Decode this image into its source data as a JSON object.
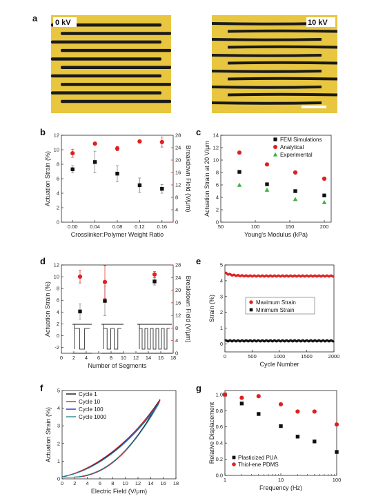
{
  "panel_labels": {
    "a": "a",
    "b": "b",
    "c": "c",
    "d": "d",
    "e": "e",
    "f": "f",
    "g": "g"
  },
  "photos": {
    "left_label": "0 kV",
    "right_label": "10 kV",
    "background": "#e8c640",
    "stripe_color": "#1a1a1a"
  },
  "chart_data": [
    {
      "id": "b",
      "type": "scatter",
      "xlabel": "Crosslinker:Polymer Weight Ratio",
      "ylabel": "Actuation Strain (%)",
      "y2label": "Breakdown Field (V/μm)",
      "xlim": [
        -0.02,
        0.18
      ],
      "ylim": [
        0,
        12
      ],
      "y2lim": [
        0,
        28
      ],
      "xticks": [
        0.0,
        0.04,
        0.08,
        0.12,
        0.16
      ],
      "xtick_labels": [
        "0.00",
        "0.04",
        "0.08",
        "0.12",
        "0.16"
      ],
      "yticks": [
        0,
        2,
        4,
        6,
        8,
        10,
        12
      ],
      "y2ticks": [
        0,
        4,
        8,
        12,
        16,
        20,
        24,
        28
      ],
      "series": [
        {
          "axis": "left",
          "marker": "square",
          "color": "#111111",
          "x": [
            0.0,
            0.04,
            0.08,
            0.12,
            0.16
          ],
          "y": [
            7.3,
            8.3,
            6.7,
            5.1,
            4.6
          ],
          "err": [
            0.5,
            1.5,
            1.1,
            1.0,
            0.6
          ]
        },
        {
          "axis": "right",
          "marker": "circle",
          "color": "#e02020",
          "x": [
            0.0,
            0.04,
            0.08,
            0.12,
            0.16
          ],
          "y": [
            22.2,
            25.3,
            23.7,
            26.0,
            25.8
          ],
          "err": [
            1.3,
            0,
            0.7,
            0,
            1.6
          ]
        }
      ]
    },
    {
      "id": "c",
      "type": "scatter",
      "xlabel": "Young's Modulus (kPa)",
      "ylabel": "Actuation Strain at 20 V/μm",
      "xlim": [
        50,
        210
      ],
      "ylim": [
        0,
        14
      ],
      "xticks": [
        50,
        100,
        150,
        200
      ],
      "yticks": [
        0,
        2,
        4,
        6,
        8,
        10,
        12,
        14
      ],
      "legend_position": "top-right",
      "series": [
        {
          "name": "FEM Simulations",
          "marker": "square",
          "color": "#111111",
          "x": [
            77,
            117,
            158,
            200
          ],
          "y": [
            8.1,
            6.1,
            5.0,
            4.3
          ]
        },
        {
          "name": "Analytical",
          "marker": "circle",
          "color": "#e02020",
          "x": [
            77,
            117,
            158,
            200
          ],
          "y": [
            11.2,
            9.3,
            8.0,
            7.0
          ]
        },
        {
          "name": "Experimental",
          "marker": "triangle",
          "color": "#3cb53c",
          "x": [
            77,
            117,
            158,
            200
          ],
          "y": [
            6.0,
            5.2,
            3.7,
            3.2
          ]
        }
      ]
    },
    {
      "id": "d",
      "type": "scatter",
      "xlabel": "Number of Segments",
      "ylabel": "Actuation Strain (%)",
      "y2label": "Breakdown Field (V/μm)",
      "xlim": [
        0,
        18
      ],
      "ylim": [
        -3,
        12
      ],
      "y2lim": [
        0,
        28
      ],
      "xticks": [
        0,
        2,
        4,
        6,
        8,
        10,
        12,
        14,
        16,
        18
      ],
      "yticks": [
        -2,
        0,
        2,
        4,
        6,
        8,
        10,
        12
      ],
      "y2ticks": [
        0,
        4,
        8,
        12,
        16,
        20,
        24,
        28
      ],
      "series": [
        {
          "axis": "left",
          "marker": "square",
          "color": "#111111",
          "x": [
            3,
            7,
            15
          ],
          "y": [
            4.1,
            5.9,
            9.2
          ],
          "err": [
            1.3,
            2.5,
            0.6
          ]
        },
        {
          "axis": "right",
          "marker": "circle",
          "color": "#e02020",
          "x": [
            3,
            7,
            15
          ],
          "y": [
            24.3,
            22.6,
            25.0
          ],
          "err": [
            2.0,
            5.2,
            0.9
          ]
        }
      ]
    },
    {
      "id": "e",
      "type": "scatter",
      "xlabel": "Cycle Number",
      "ylabel": "Strain (%)",
      "xlim": [
        0,
        2000
      ],
      "ylim": [
        -0.5,
        5
      ],
      "xticks": [
        0,
        500,
        1000,
        1500,
        2000
      ],
      "yticks": [
        0,
        1,
        2,
        3,
        4,
        5
      ],
      "legend_position": "center",
      "series": [
        {
          "name": "Maximum Strain",
          "marker": "circle",
          "color": "#e02020",
          "level": 4.3,
          "start": 4.5
        },
        {
          "name": "Minimum Strain",
          "marker": "square",
          "color": "#111111",
          "level": 0.2,
          "start": 0.2
        }
      ]
    },
    {
      "id": "f",
      "type": "line",
      "xlabel": "Electric Field (V/μm)",
      "ylabel": "Actuation Strain (%)",
      "xlim": [
        0,
        18
      ],
      "ylim": [
        0,
        5
      ],
      "xticks": [
        0,
        2,
        4,
        6,
        8,
        10,
        12,
        14,
        16,
        18
      ],
      "yticks": [
        0,
        1,
        2,
        3,
        4,
        5
      ],
      "legend_position": "top-left",
      "series": [
        {
          "name": "Cycle 1",
          "color": "#111111",
          "xmax": 15.5,
          "ymax": 4.5,
          "hyst": 0.32
        },
        {
          "name": "Cycle 10",
          "color": "#e02020",
          "xmax": 15.5,
          "ymax": 4.45,
          "hyst": 0.36
        },
        {
          "name": "Cycle 100",
          "color": "#2030c0",
          "xmax": 15.4,
          "ymax": 4.35,
          "hyst": 0.3
        },
        {
          "name": "Cycle 1000",
          "color": "#2a8a8a",
          "xmax": 15.3,
          "ymax": 4.25,
          "hyst": 0.28
        }
      ]
    },
    {
      "id": "g",
      "type": "scatter",
      "xscale": "log",
      "xlabel": "Frequency (Hz)",
      "ylabel": "Relative Displacement",
      "xlim": [
        1,
        100
      ],
      "ylim": [
        0,
        1.05
      ],
      "xticks": [
        1,
        10,
        100
      ],
      "xtick_labels": [
        "1",
        "10",
        "100"
      ],
      "yticks": [
        0,
        0.2,
        0.4,
        0.6,
        0.8,
        1.0
      ],
      "ytick_labels": [
        "0.0",
        "0.2",
        "0.4",
        "0.6",
        "0.8",
        "1.0"
      ],
      "legend_position": "bottom-left",
      "series": [
        {
          "name": "Plasticized PUA",
          "marker": "square",
          "color": "#111111",
          "x": [
            1,
            2,
            4,
            10,
            20,
            40,
            100
          ],
          "y": [
            1.0,
            0.89,
            0.76,
            0.61,
            0.48,
            0.42,
            0.29
          ]
        },
        {
          "name": "Thiol-ene PDMS",
          "marker": "circle",
          "color": "#e02020",
          "x": [
            1,
            2,
            4,
            10,
            20,
            40,
            100
          ],
          "y": [
            1.0,
            0.96,
            0.98,
            0.88,
            0.79,
            0.79,
            0.63
          ]
        }
      ]
    }
  ]
}
